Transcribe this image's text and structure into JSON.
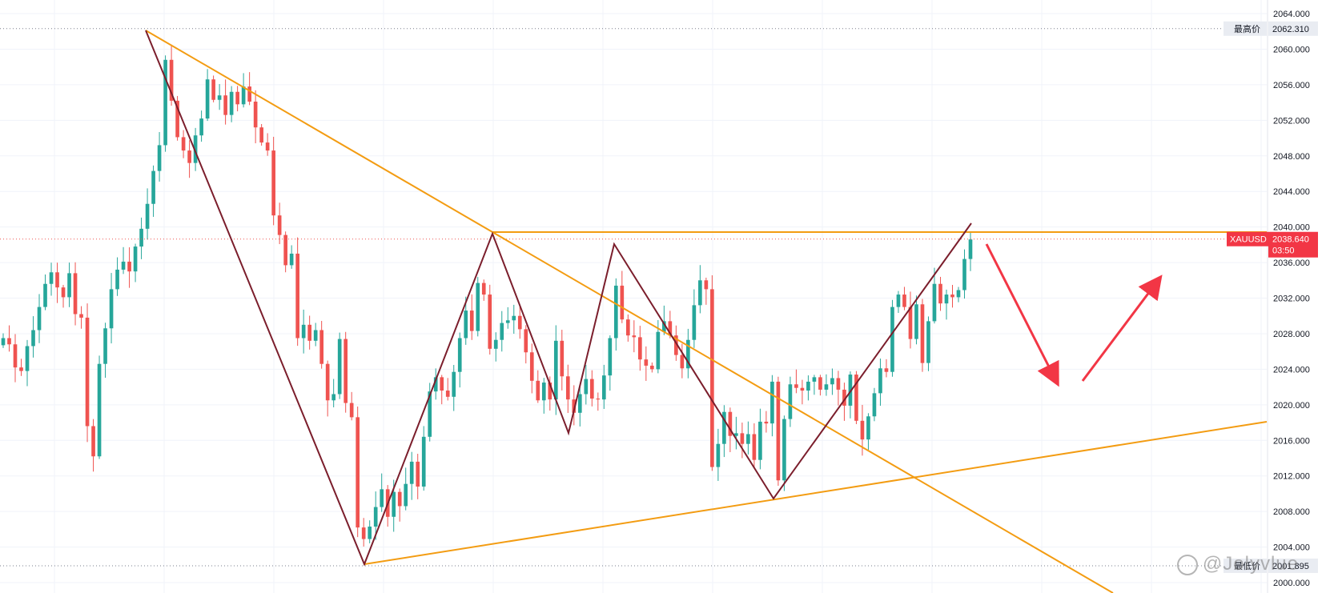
{
  "chart_data": {
    "type": "candlestick",
    "symbol": "XAUUSD",
    "last_price": "2038.640",
    "countdown": "03:50",
    "high_label": "最高价",
    "high_value": "2062.310",
    "low_label": "最低价",
    "low_value": "2001.895",
    "ylim": [
      2000,
      2064
    ],
    "y_ticks": [
      "2064.000",
      "2060.000",
      "2056.000",
      "2052.000",
      "2048.000",
      "2044.000",
      "2040.000",
      "2036.000",
      "2032.000",
      "2028.000",
      "2024.000",
      "2020.000",
      "2016.000",
      "2012.000",
      "2008.000",
      "2004.000",
      "2000.000"
    ],
    "grid": true,
    "candle_closes": [
      2027.5,
      2026.8,
      2024.2,
      2023.8,
      2026.6,
      2028.4,
      2031.0,
      2033.6,
      2034.9,
      2033.2,
      2032.1,
      2034.8,
      2030.2,
      2029.8,
      2017.6,
      2014.2,
      2024.6,
      2028.6,
      2033.0,
      2035.2,
      2036.1,
      2035.0,
      2037.8,
      2039.8,
      2042.6,
      2046.3,
      2049.2,
      2058.8,
      2054.2,
      2050.1,
      2048.6,
      2047.2,
      2050.3,
      2052.2,
      2056.6,
      2054.3,
      2054.8,
      2052.6,
      2055.2,
      2053.8,
      2055.8,
      2054.1,
      2051.2,
      2049.5,
      2048.6,
      2041.3,
      2039.1,
      2035.7,
      2037.0,
      2027.5,
      2029.0,
      2027.2,
      2028.4,
      2024.6,
      2020.5,
      2021.2,
      2027.4,
      2020.2,
      2018.6,
      2006.2,
      2004.9,
      2006.3,
      2008.5,
      2010.5,
      2007.4,
      2010.2,
      2008.6,
      2011.1,
      2013.6,
      2010.8,
      2016.4,
      2021.5,
      2023.1,
      2021.6,
      2020.9,
      2023.7,
      2027.5,
      2030.6,
      2028.3,
      2033.7,
      2032.4,
      2026.3,
      2027.3,
      2029.2,
      2029.5,
      2030.0,
      2028.5,
      2025.9,
      2022.7,
      2020.5,
      2022.5,
      2020.6,
      2027.2,
      2023.2,
      2020.6,
      2019.1,
      2021.2,
      2022.9,
      2020.7,
      2020.6,
      2023.3,
      2027.5,
      2033.4,
      2029.6,
      2027.8,
      2027.6,
      2025.1,
      2024.4,
      2024.0,
      2028.2,
      2029.4,
      2027.8,
      2025.6,
      2024.1,
      2027.3,
      2031.2,
      2034.0,
      2033.0,
      2013.0,
      2015.6,
      2019.2,
      2016.5,
      2016.8,
      2015.6,
      2016.7,
      2013.8,
      2018.1,
      2017.9,
      2022.6,
      2011.5,
      2018.4,
      2022.3,
      2021.9,
      2021.6,
      2022.6,
      2023.1,
      2021.7,
      2022.3,
      2023.0,
      2021.7,
      2019.9,
      2023.4,
      2018.2,
      2016.1,
      2018.7,
      2021.3,
      2024.1,
      2023.7,
      2031.0,
      2032.4,
      2031.0,
      2027.4,
      2031.3,
      2024.7,
      2029.4,
      2033.6,
      2031.4,
      2032.4,
      2032.1,
      2032.9,
      2036.4,
      2038.6
    ]
  },
  "annotations": {
    "drawn_lines": [
      "descending trendline",
      "ascending trendline",
      "horizontal resistance",
      "zigzag swings"
    ],
    "arrows": [
      "down-arrow",
      "up-arrow"
    ]
  },
  "colors": {
    "up_candle": "#26a69a",
    "down_candle": "#ef5350",
    "trendline_orange": "#f39c12",
    "zigzag_line": "#7b1e2c",
    "arrow_red": "#f23645",
    "price_tag_bg": "#f23645",
    "high_tag_bg": "#e9ecf2",
    "grid": "#f0f3fa"
  },
  "watermark": {
    "text": "@Jolyvlue"
  }
}
